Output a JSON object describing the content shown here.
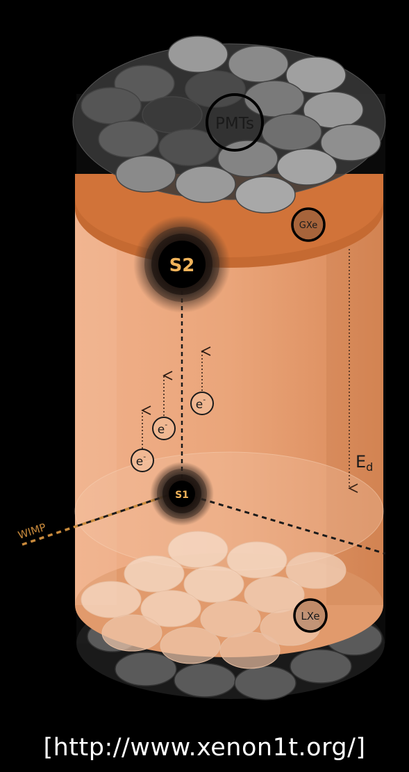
{
  "labels": {
    "pmts": "PMTs",
    "gxe": "GXe",
    "lxe": "LXe",
    "s2": "S2",
    "s1": "S1",
    "electron": "e",
    "electron_sup": "-",
    "drift_field": "E",
    "drift_field_sub": "d",
    "wimp": "WIMP"
  },
  "caption": "[http://www.xenon1t.org/]",
  "colors": {
    "background": "#000000",
    "liquid_xenon": "#e7a37a",
    "gas_layer": "#c56a32",
    "pmt_top": "#7a7a7a",
    "pmt_bottom_lit": "#f3d6c2",
    "pmt_bottom_outside": "#555555",
    "wimp_path": "#c98a3c",
    "signal_text": "#f0b35a"
  }
}
